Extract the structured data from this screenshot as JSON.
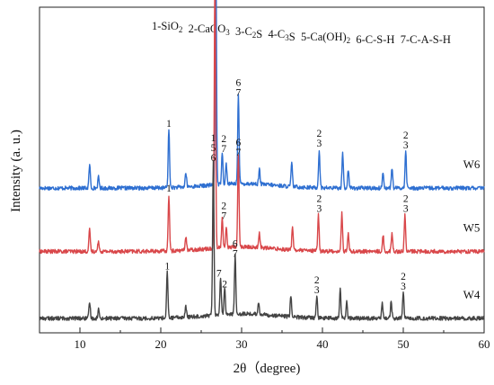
{
  "chart_data": {
    "type": "line",
    "xlabel": "2θ（degree)",
    "ylabel": "Intensity (a. u.)",
    "xlim": [
      5,
      60
    ],
    "x_ticks": [
      10,
      20,
      30,
      40,
      50,
      60
    ],
    "y_ticks_shown": false,
    "grid": false,
    "phase_legend": "1-SiO2  2-CaCO3  3-C2S  4-C3S  5-Ca(OH)2  6-C-S-H  7-C-A-S-H",
    "phase_legend_parts": [
      {
        "t": "1-SiO",
        "sub": "2"
      },
      {
        "t": "  2-CaCO",
        "sub": "3"
      },
      {
        "t": "  3-C",
        "sub": "2"
      },
      {
        "t": "S  4-C",
        "sub": "3"
      },
      {
        "t": "S  5-Ca(OH)",
        "sub": "2"
      },
      {
        "t": "  6-C-S-H  7-C-A-S-H",
        "sub": ""
      }
    ],
    "series": [
      {
        "name": "W6",
        "color": "#2e6fd1",
        "baseline": 8,
        "peaks": [
          {
            "x": 11.2,
            "h": 1.3
          },
          {
            "x": 12.3,
            "h": 0.6
          },
          {
            "x": 21.0,
            "h": 3.2
          },
          {
            "x": 23.1,
            "h": 0.8
          },
          {
            "x": 26.8,
            "h": 14.0
          },
          {
            "x": 27.6,
            "h": 1.8
          },
          {
            "x": 28.1,
            "h": 1.1
          },
          {
            "x": 29.6,
            "h": 4.9
          },
          {
            "x": 32.2,
            "h": 0.8
          },
          {
            "x": 36.2,
            "h": 1.3
          },
          {
            "x": 39.6,
            "h": 2.1
          },
          {
            "x": 42.5,
            "h": 2.0
          },
          {
            "x": 43.2,
            "h": 1.0
          },
          {
            "x": 47.5,
            "h": 0.9
          },
          {
            "x": 48.6,
            "h": 1.1
          },
          {
            "x": 50.3,
            "h": 2.0
          }
        ],
        "peak_labels": [
          {
            "x": 21.0,
            "lines": [
              "1"
            ]
          },
          {
            "x": 26.8,
            "lines": [
              "1",
              "5",
              "6"
            ]
          },
          {
            "x": 27.8,
            "lines": [
              "2",
              "7"
            ]
          },
          {
            "x": 29.6,
            "lines": [
              "6",
              "7"
            ]
          },
          {
            "x": 39.6,
            "lines": [
              "2",
              "3"
            ]
          },
          {
            "x": 50.3,
            "lines": [
              "2",
              "3"
            ]
          }
        ]
      },
      {
        "name": "W5",
        "color": "#d9474a",
        "baseline": 4.5,
        "peaks": [
          {
            "x": 11.2,
            "h": 1.2
          },
          {
            "x": 12.3,
            "h": 0.6
          },
          {
            "x": 21.0,
            "h": 3.1
          },
          {
            "x": 23.1,
            "h": 0.8
          },
          {
            "x": 26.7,
            "h": 15.0
          },
          {
            "x": 27.6,
            "h": 1.6
          },
          {
            "x": 28.1,
            "h": 1.1
          },
          {
            "x": 29.6,
            "h": 5.1
          },
          {
            "x": 32.2,
            "h": 0.8
          },
          {
            "x": 36.3,
            "h": 1.3
          },
          {
            "x": 39.5,
            "h": 2.0
          },
          {
            "x": 42.4,
            "h": 2.1
          },
          {
            "x": 43.2,
            "h": 1.0
          },
          {
            "x": 47.5,
            "h": 0.9
          },
          {
            "x": 48.6,
            "h": 1.0
          },
          {
            "x": 50.2,
            "h": 2.0
          }
        ],
        "peak_labels": [
          {
            "x": 21.0,
            "lines": [
              "1"
            ]
          },
          {
            "x": 26.7,
            "lines": [
              "1",
              "5",
              "6"
            ]
          },
          {
            "x": 27.8,
            "lines": [
              "2",
              "7"
            ]
          },
          {
            "x": 29.6,
            "lines": [
              "6",
              "7"
            ]
          },
          {
            "x": 39.6,
            "lines": [
              "2",
              "3"
            ]
          },
          {
            "x": 50.3,
            "lines": [
              "2",
              "3"
            ]
          }
        ]
      },
      {
        "name": "W4",
        "color": "#444444",
        "baseline": 0.8,
        "peaks": [
          {
            "x": 11.2,
            "h": 0.9
          },
          {
            "x": 12.3,
            "h": 0.5
          },
          {
            "x": 20.8,
            "h": 2.5
          },
          {
            "x": 23.1,
            "h": 0.6
          },
          {
            "x": 26.5,
            "h": 8.5
          },
          {
            "x": 27.4,
            "h": 2.1
          },
          {
            "x": 27.9,
            "h": 1.5
          },
          {
            "x": 29.2,
            "h": 3.2
          },
          {
            "x": 32.1,
            "h": 0.7
          },
          {
            "x": 36.1,
            "h": 1.2
          },
          {
            "x": 39.3,
            "h": 1.2
          },
          {
            "x": 42.2,
            "h": 1.6
          },
          {
            "x": 43.0,
            "h": 0.9
          },
          {
            "x": 47.4,
            "h": 0.8
          },
          {
            "x": 48.5,
            "h": 0.9
          },
          {
            "x": 50.0,
            "h": 1.4
          }
        ],
        "peak_labels": [
          {
            "x": 20.8,
            "lines": [
              "1"
            ]
          },
          {
            "x": 26.5,
            "lines": [
              "1",
              "5",
              "6"
            ]
          },
          {
            "x": 27.2,
            "lines": [
              "7"
            ]
          },
          {
            "x": 27.9,
            "lines": [
              "2"
            ]
          },
          {
            "x": 29.2,
            "lines": [
              "6",
              "7"
            ]
          },
          {
            "x": 39.3,
            "lines": [
              "2",
              "3"
            ]
          },
          {
            "x": 50.0,
            "lines": [
              "2",
              "3"
            ]
          }
        ]
      }
    ]
  }
}
